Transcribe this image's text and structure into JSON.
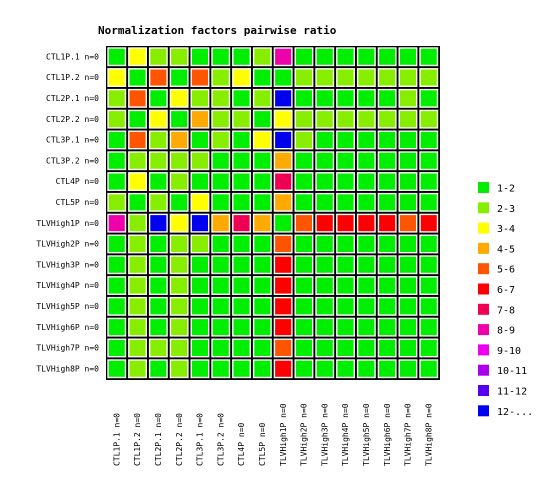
{
  "chart_data": {
    "type": "heatmap",
    "title": "Normalization factors pairwise ratio",
    "labels": [
      "CTL1P.1 n=0",
      "CTL1P.2 n=0",
      "CTL2P.1 n=0",
      "CTL2P.2 n=0",
      "CTL3P.1 n=0",
      "CTL3P.2 n=0",
      "CTL4P n=0",
      "CTL5P n=0",
      "TLVHigh1P n=0",
      "TLVHigh2P n=0",
      "TLVHigh3P n=0",
      "TLVHigh4P n=0",
      "TLVHigh5P n=0",
      "TLVHigh6P n=0",
      "TLVHigh7P n=0",
      "TLVHigh8P n=0"
    ],
    "legend": [
      {
        "label": "1-2",
        "color": "#00ee00"
      },
      {
        "label": "2-3",
        "color": "#88ee00"
      },
      {
        "label": "3-4",
        "color": "#ffff00"
      },
      {
        "label": "4-5",
        "color": "#ffaa00"
      },
      {
        "label": "5-6",
        "color": "#ff5500"
      },
      {
        "label": "6-7",
        "color": "#ff0000"
      },
      {
        "label": "7-8",
        "color": "#ee0055"
      },
      {
        "label": "8-9",
        "color": "#ee00aa"
      },
      {
        "label": "9-10",
        "color": "#ee00ee"
      },
      {
        "label": "10-11",
        "color": "#aa00ee"
      },
      {
        "label": "11-12",
        "color": "#5500ee"
      },
      {
        "label": "12-...",
        "color": "#0000ee"
      }
    ],
    "matrix_bins": [
      [
        0,
        2,
        1,
        1,
        0,
        0,
        0,
        1,
        7,
        0,
        0,
        0,
        0,
        0,
        0,
        0
      ],
      [
        2,
        0,
        4,
        0,
        4,
        1,
        2,
        0,
        0,
        1,
        1,
        1,
        1,
        1,
        1,
        1
      ],
      [
        1,
        4,
        0,
        2,
        1,
        1,
        0,
        1,
        11,
        0,
        0,
        0,
        0,
        0,
        1,
        0
      ],
      [
        1,
        0,
        2,
        0,
        3,
        1,
        1,
        0,
        2,
        1,
        1,
        1,
        1,
        1,
        1,
        1
      ],
      [
        0,
        4,
        1,
        3,
        0,
        1,
        0,
        2,
        11,
        1,
        0,
        0,
        0,
        0,
        0,
        0
      ],
      [
        0,
        1,
        1,
        1,
        1,
        0,
        0,
        0,
        3,
        0,
        0,
        0,
        0,
        0,
        0,
        0
      ],
      [
        0,
        2,
        0,
        1,
        0,
        0,
        0,
        0,
        6,
        0,
        0,
        0,
        0,
        0,
        0,
        0
      ],
      [
        1,
        0,
        1,
        0,
        2,
        0,
        0,
        0,
        3,
        0,
        0,
        0,
        0,
        0,
        0,
        0
      ],
      [
        7,
        1,
        11,
        2,
        11,
        3,
        6,
        3,
        0,
        4,
        5,
        5,
        5,
        5,
        4,
        5
      ],
      [
        0,
        1,
        0,
        1,
        1,
        0,
        0,
        0,
        4,
        0,
        0,
        0,
        0,
        0,
        0,
        0
      ],
      [
        0,
        1,
        0,
        1,
        0,
        0,
        0,
        0,
        5,
        0,
        0,
        0,
        0,
        0,
        0,
        0
      ],
      [
        0,
        1,
        0,
        1,
        0,
        0,
        0,
        0,
        5,
        0,
        0,
        0,
        0,
        0,
        0,
        0
      ],
      [
        0,
        1,
        0,
        1,
        0,
        0,
        0,
        0,
        5,
        0,
        0,
        0,
        0,
        0,
        0,
        0
      ],
      [
        0,
        1,
        0,
        1,
        0,
        0,
        0,
        0,
        5,
        0,
        0,
        0,
        0,
        0,
        0,
        0
      ],
      [
        0,
        1,
        1,
        1,
        0,
        0,
        0,
        0,
        4,
        0,
        0,
        0,
        0,
        0,
        0,
        0
      ],
      [
        0,
        1,
        0,
        1,
        0,
        0,
        0,
        0,
        5,
        0,
        0,
        0,
        0,
        0,
        0,
        0
      ]
    ]
  }
}
